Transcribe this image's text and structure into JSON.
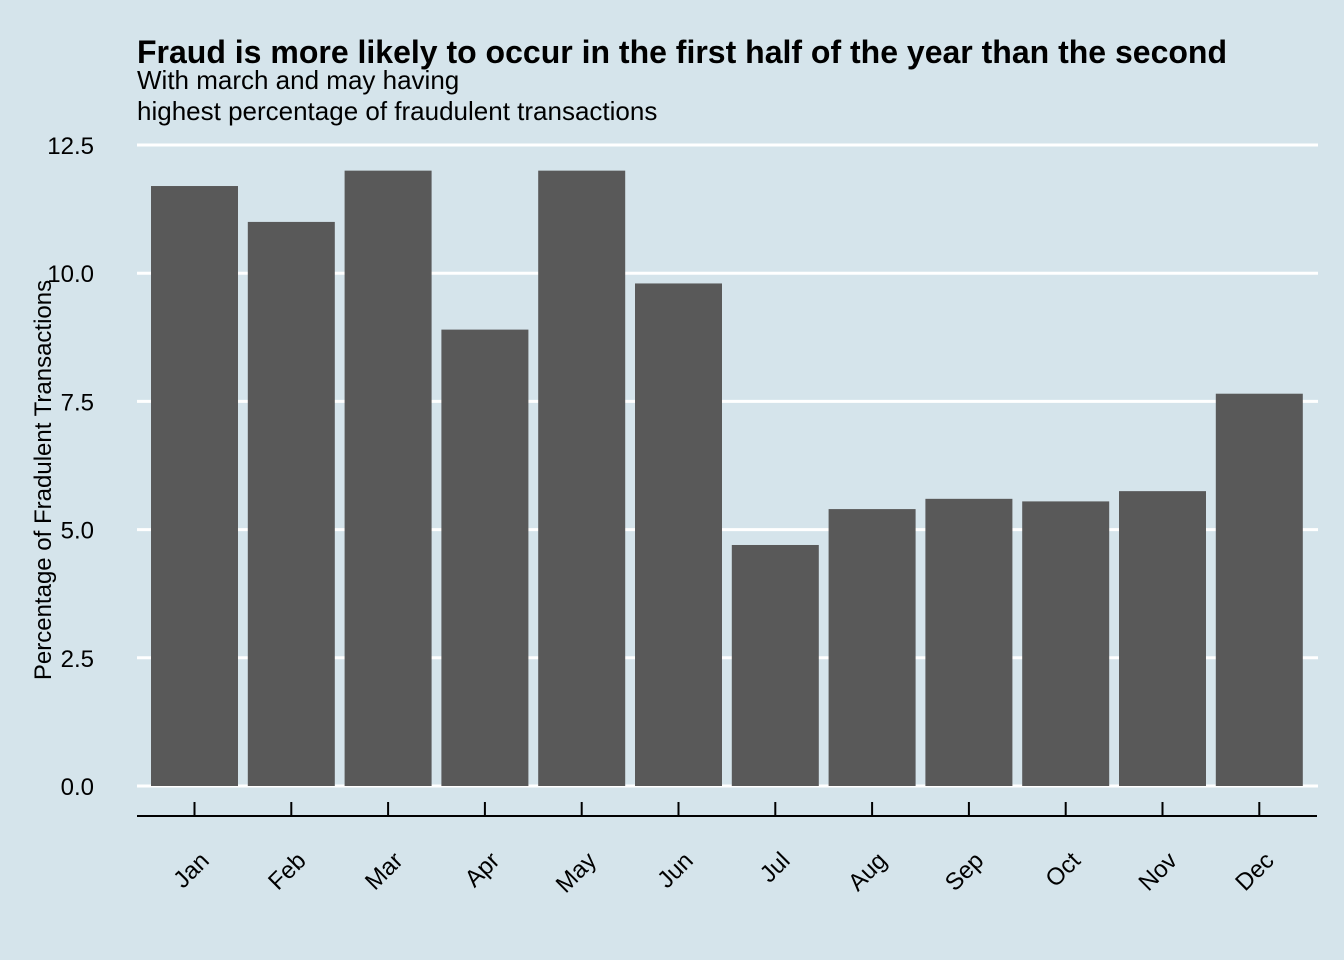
{
  "chart_data": {
    "type": "bar",
    "title": "Fraud is more likely to occur in the first half of the year than the second",
    "subtitle_lines": [
      "With march and may having",
      "highest percentage of fraudulent transactions"
    ],
    "xlabel": "",
    "ylabel": "Percentage of Fradulent Transactions",
    "categories": [
      "Jan",
      "Feb",
      "Mar",
      "Apr",
      "May",
      "Jun",
      "Jul",
      "Aug",
      "Sep",
      "Oct",
      "Nov",
      "Dec"
    ],
    "values": [
      11.7,
      11.0,
      12.0,
      8.9,
      12.0,
      9.8,
      4.7,
      5.4,
      5.6,
      5.55,
      5.75,
      7.65
    ],
    "ylim": [
      0,
      12.5
    ],
    "yticks": [
      "0.0",
      "2.5",
      "5.0",
      "7.5",
      "10.0",
      "12.5"
    ],
    "ytick_values": [
      0,
      2.5,
      5,
      7.5,
      10,
      12.5
    ],
    "grid": true,
    "legend": "none",
    "bar_color": "#595959",
    "grid_color": "#ffffff",
    "background_color": "#d5e4eb"
  }
}
